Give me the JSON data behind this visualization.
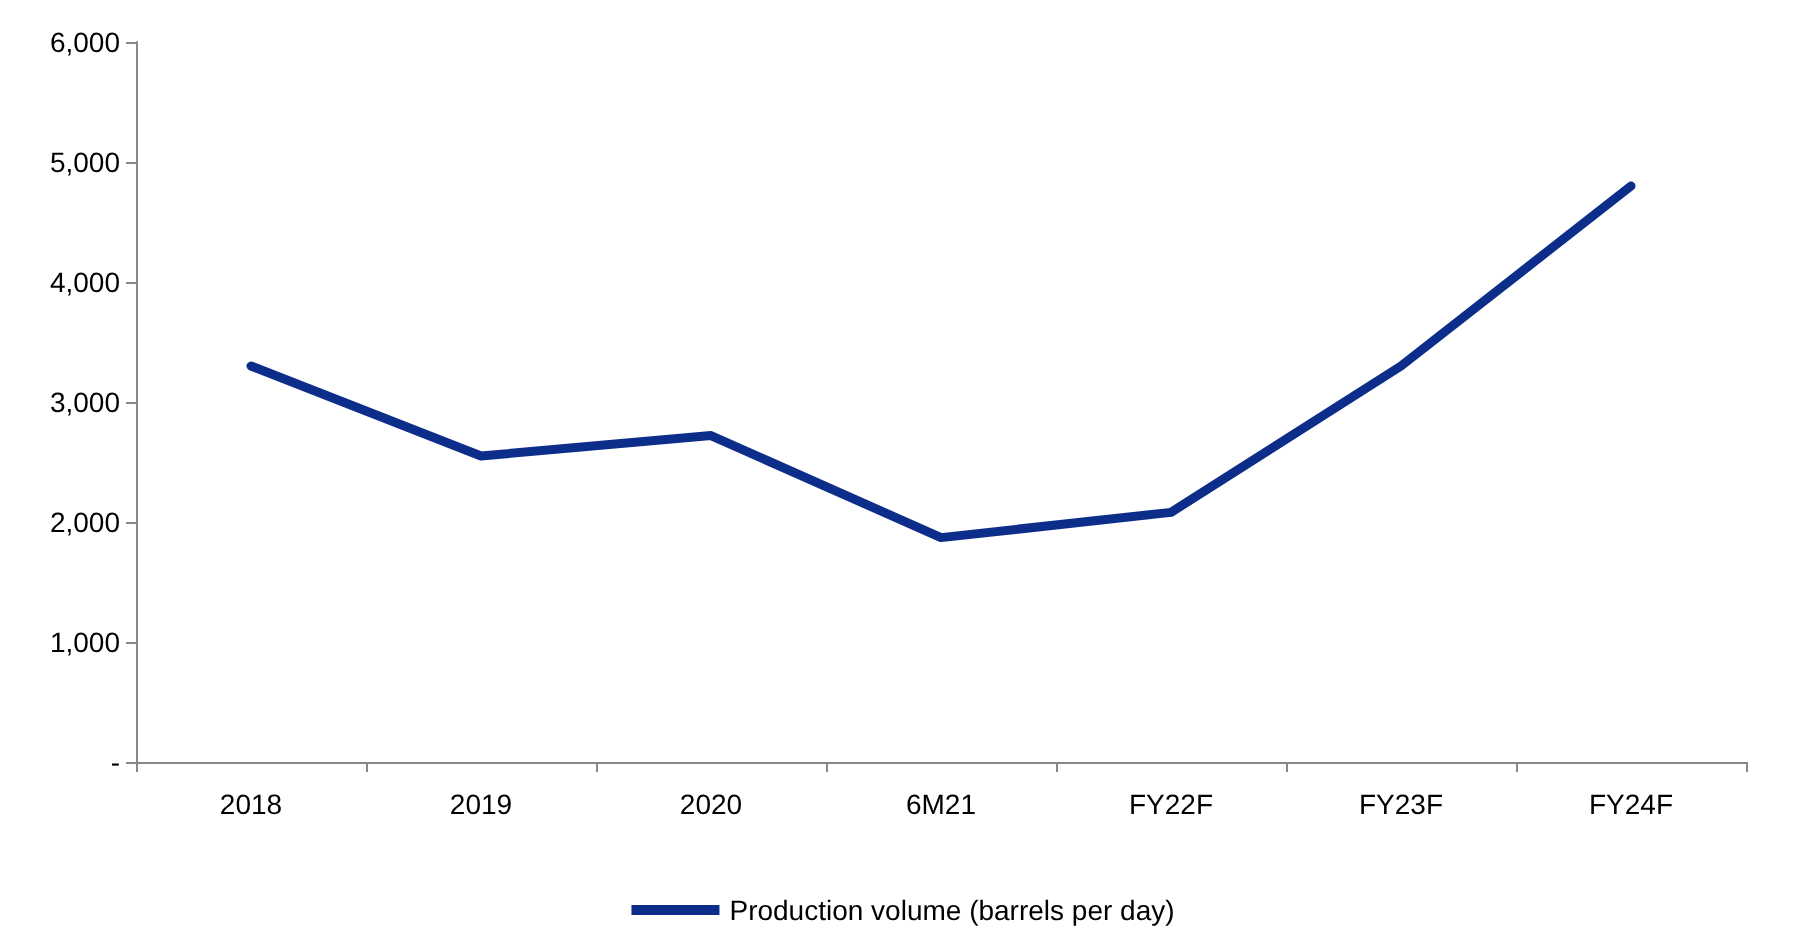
{
  "chart_data": {
    "type": "line",
    "categories": [
      "2018",
      "2019",
      "2020",
      "6M21",
      "FY22F",
      "FY23F",
      "FY24F"
    ],
    "series": [
      {
        "name": "Production volume (barrels per day)",
        "color": "#0c2d8a",
        "values": [
          3300,
          2550,
          2720,
          1870,
          2080,
          3300,
          4800
        ]
      }
    ],
    "ylim": [
      0,
      6000
    ],
    "yticks": [
      {
        "value": 0,
        "label": "-"
      },
      {
        "value": 1000,
        "label": "1,000"
      },
      {
        "value": 2000,
        "label": "2,000"
      },
      {
        "value": 3000,
        "label": "3,000"
      },
      {
        "value": 4000,
        "label": "4,000"
      },
      {
        "value": 5000,
        "label": "5,000"
      },
      {
        "value": 6000,
        "label": "6,000"
      }
    ],
    "grid": false,
    "legend": "bottom",
    "marker": "none",
    "line_style": "solid"
  }
}
